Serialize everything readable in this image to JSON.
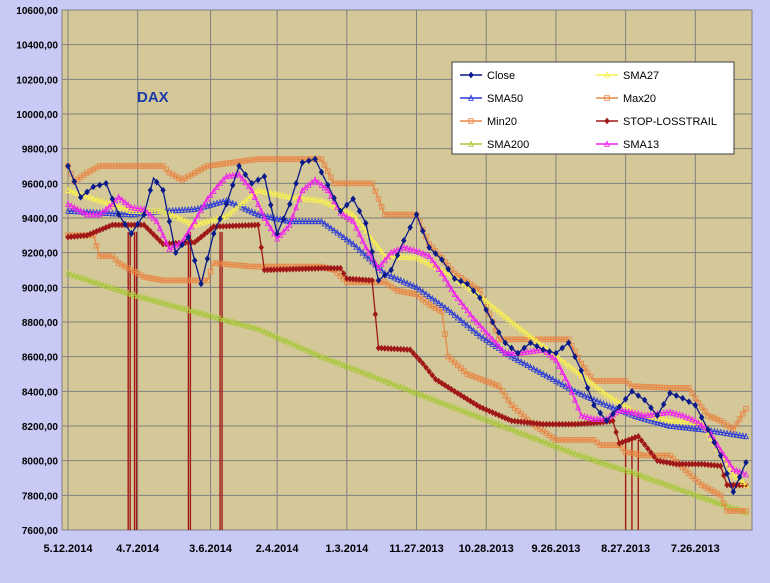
{
  "chart_data": {
    "type": "line",
    "title": "DAX",
    "xlabel": "",
    "ylabel": "",
    "ylim": [
      7600,
      10600
    ],
    "y_ticks": [
      "10600,00",
      "10400,00",
      "10200,00",
      "10000,00",
      "9800,00",
      "9600,00",
      "9400,00",
      "9200,00",
      "9000,00",
      "8800,00",
      "8600,00",
      "8400,00",
      "8200,00",
      "8000,00",
      "7800,00",
      "7600,00"
    ],
    "y_tick_values": [
      10600,
      10400,
      10200,
      10000,
      9800,
      9600,
      9400,
      9200,
      9000,
      8800,
      8600,
      8400,
      8200,
      8000,
      7800,
      7600
    ],
    "x_ticks": [
      "5.12.2014",
      "4.7.2014",
      "3.6.2014",
      "2.4.2014",
      "1.3.2014",
      "11.27.2013",
      "10.28.2013",
      "9.26.2013",
      "8.27.2013",
      "7.26.2013"
    ],
    "x_tick_index": [
      0,
      22,
      45,
      66,
      88,
      110,
      132,
      154,
      176,
      198
    ],
    "x_count": 215,
    "grid": "both",
    "legend_position": "top-right",
    "colors": {
      "background": "#c9c9f5",
      "plot_area": "#d4c898",
      "grid": "#808080",
      "title": "#1a3aa8"
    },
    "series": [
      {
        "name": "Close",
        "color": "#0a1a8a",
        "marker": "diamond",
        "key": [
          [
            0,
            9700
          ],
          [
            4,
            9520
          ],
          [
            8,
            9580
          ],
          [
            12,
            9600
          ],
          [
            16,
            9420
          ],
          [
            20,
            9310
          ],
          [
            24,
            9420
          ],
          [
            27,
            9630
          ],
          [
            30,
            9560
          ],
          [
            34,
            9200
          ],
          [
            38,
            9290
          ],
          [
            42,
            9020
          ],
          [
            46,
            9310
          ],
          [
            50,
            9480
          ],
          [
            54,
            9700
          ],
          [
            58,
            9600
          ],
          [
            62,
            9640
          ],
          [
            66,
            9310
          ],
          [
            70,
            9480
          ],
          [
            74,
            9720
          ],
          [
            78,
            9740
          ],
          [
            82,
            9590
          ],
          [
            86,
            9440
          ],
          [
            90,
            9510
          ],
          [
            94,
            9370
          ],
          [
            98,
            9040
          ],
          [
            102,
            9100
          ],
          [
            106,
            9270
          ],
          [
            110,
            9420
          ],
          [
            114,
            9230
          ],
          [
            118,
            9160
          ],
          [
            122,
            9050
          ],
          [
            126,
            9020
          ],
          [
            130,
            8940
          ],
          [
            134,
            8800
          ],
          [
            138,
            8680
          ],
          [
            142,
            8620
          ],
          [
            146,
            8680
          ],
          [
            150,
            8640
          ],
          [
            154,
            8620
          ],
          [
            158,
            8680
          ],
          [
            162,
            8520
          ],
          [
            166,
            8320
          ],
          [
            170,
            8230
          ],
          [
            174,
            8310
          ],
          [
            178,
            8400
          ],
          [
            182,
            8350
          ],
          [
            186,
            8260
          ],
          [
            190,
            8390
          ],
          [
            194,
            8360
          ],
          [
            198,
            8320
          ],
          [
            202,
            8180
          ],
          [
            206,
            8030
          ],
          [
            210,
            7820
          ],
          [
            214,
            7990
          ]
        ]
      },
      {
        "name": "SMA27",
        "color": "#f8f050",
        "marker": "triangle",
        "key": [
          [
            0,
            9560
          ],
          [
            10,
            9500
          ],
          [
            20,
            9440
          ],
          [
            30,
            9440
          ],
          [
            40,
            9360
          ],
          [
            50,
            9410
          ],
          [
            60,
            9560
          ],
          [
            70,
            9520
          ],
          [
            80,
            9500
          ],
          [
            90,
            9420
          ],
          [
            100,
            9180
          ],
          [
            110,
            9170
          ],
          [
            120,
            9080
          ],
          [
            130,
            8950
          ],
          [
            140,
            8800
          ],
          [
            150,
            8660
          ],
          [
            160,
            8520
          ],
          [
            170,
            8380
          ],
          [
            180,
            8270
          ],
          [
            190,
            8230
          ],
          [
            200,
            8220
          ],
          [
            210,
            7920
          ],
          [
            214,
            7860
          ]
        ]
      },
      {
        "name": "SMA50",
        "color": "#2a3ad8",
        "marker": "triangle",
        "key": [
          [
            0,
            9440
          ],
          [
            20,
            9420
          ],
          [
            30,
            9440
          ],
          [
            40,
            9450
          ],
          [
            50,
            9500
          ],
          [
            60,
            9420
          ],
          [
            70,
            9380
          ],
          [
            80,
            9380
          ],
          [
            90,
            9250
          ],
          [
            100,
            9080
          ],
          [
            110,
            9000
          ],
          [
            120,
            8870
          ],
          [
            130,
            8720
          ],
          [
            140,
            8600
          ],
          [
            150,
            8500
          ],
          [
            160,
            8400
          ],
          [
            170,
            8320
          ],
          [
            180,
            8250
          ],
          [
            190,
            8200
          ],
          [
            200,
            8180
          ],
          [
            214,
            8140
          ]
        ]
      },
      {
        "name": "Max20",
        "color": "#e88848",
        "marker": "square",
        "key": [
          [
            0,
            9700
          ],
          [
            2,
            9610
          ],
          [
            6,
            9660
          ],
          [
            10,
            9700
          ],
          [
            30,
            9700
          ],
          [
            32,
            9660
          ],
          [
            36,
            9620
          ],
          [
            40,
            9660
          ],
          [
            44,
            9700
          ],
          [
            60,
            9740
          ],
          [
            80,
            9740
          ],
          [
            84,
            9600
          ],
          [
            96,
            9600
          ],
          [
            100,
            9420
          ],
          [
            110,
            9420
          ],
          [
            114,
            9250
          ],
          [
            118,
            9170
          ],
          [
            122,
            9080
          ],
          [
            126,
            9030
          ],
          [
            130,
            8980
          ],
          [
            134,
            8800
          ],
          [
            136,
            8700
          ],
          [
            154,
            8700
          ],
          [
            158,
            8700
          ],
          [
            162,
            8560
          ],
          [
            166,
            8460
          ],
          [
            176,
            8460
          ],
          [
            178,
            8430
          ],
          [
            190,
            8420
          ],
          [
            196,
            8420
          ],
          [
            198,
            8360
          ],
          [
            202,
            8260
          ],
          [
            206,
            8230
          ],
          [
            210,
            8180
          ],
          [
            214,
            8300
          ]
        ]
      },
      {
        "name": "Min20",
        "color": "#e88848",
        "marker": "square",
        "key": [
          [
            0,
            9300
          ],
          [
            8,
            9300
          ],
          [
            10,
            9180
          ],
          [
            14,
            9180
          ],
          [
            16,
            9140
          ],
          [
            20,
            9100
          ],
          [
            24,
            9060
          ],
          [
            30,
            9040
          ],
          [
            44,
            9040
          ],
          [
            46,
            9140
          ],
          [
            58,
            9120
          ],
          [
            80,
            9120
          ],
          [
            84,
            9100
          ],
          [
            88,
            9030
          ],
          [
            100,
            9030
          ],
          [
            104,
            8980
          ],
          [
            110,
            8960
          ],
          [
            114,
            8900
          ],
          [
            118,
            8860
          ],
          [
            120,
            8600
          ],
          [
            126,
            8500
          ],
          [
            136,
            8430
          ],
          [
            140,
            8320
          ],
          [
            146,
            8220
          ],
          [
            154,
            8120
          ],
          [
            166,
            8120
          ],
          [
            168,
            8090
          ],
          [
            174,
            8090
          ],
          [
            176,
            8050
          ],
          [
            182,
            8030
          ],
          [
            190,
            8030
          ],
          [
            194,
            7960
          ],
          [
            200,
            7860
          ],
          [
            206,
            7800
          ],
          [
            208,
            7710
          ],
          [
            214,
            7710
          ]
        ]
      },
      {
        "name": "STOP-LOSSTRAIL",
        "color": "#a01818",
        "marker": "diamond",
        "key": [
          [
            0,
            9290
          ],
          [
            6,
            9300
          ],
          [
            14,
            9360
          ],
          [
            24,
            9360
          ],
          [
            30,
            9250
          ],
          [
            40,
            9260
          ],
          [
            46,
            9350
          ],
          [
            60,
            9360
          ],
          [
            62,
            9100
          ],
          [
            80,
            9110
          ],
          [
            86,
            9110
          ],
          [
            88,
            9050
          ],
          [
            96,
            9040
          ],
          [
            98,
            8650
          ],
          [
            108,
            8640
          ],
          [
            112,
            8560
          ],
          [
            116,
            8470
          ],
          [
            122,
            8400
          ],
          [
            130,
            8310
          ],
          [
            140,
            8230
          ],
          [
            150,
            8210
          ],
          [
            160,
            8210
          ],
          [
            168,
            8220
          ],
          [
            172,
            8230
          ],
          [
            174,
            8100
          ],
          [
            180,
            8140
          ],
          [
            186,
            8000
          ],
          [
            192,
            7980
          ],
          [
            200,
            7980
          ],
          [
            206,
            7970
          ],
          [
            208,
            7860
          ],
          [
            214,
            7860
          ]
        ]
      },
      {
        "name": "SMA200",
        "color": "#a8c838",
        "marker": "triangle",
        "key": [
          [
            0,
            9080
          ],
          [
            20,
            8960
          ],
          [
            40,
            8860
          ],
          [
            60,
            8760
          ],
          [
            80,
            8600
          ],
          [
            100,
            8460
          ],
          [
            120,
            8320
          ],
          [
            140,
            8180
          ],
          [
            160,
            8040
          ],
          [
            180,
            7920
          ],
          [
            200,
            7790
          ],
          [
            214,
            7700
          ]
        ]
      },
      {
        "name": "SMA13",
        "color": "#f020f0",
        "marker": "triangle",
        "key": [
          [
            0,
            9480
          ],
          [
            6,
            9420
          ],
          [
            10,
            9420
          ],
          [
            14,
            9480
          ],
          [
            16,
            9520
          ],
          [
            20,
            9460
          ],
          [
            24,
            9450
          ],
          [
            28,
            9380
          ],
          [
            32,
            9220
          ],
          [
            36,
            9260
          ],
          [
            40,
            9380
          ],
          [
            44,
            9510
          ],
          [
            48,
            9600
          ],
          [
            50,
            9640
          ],
          [
            54,
            9650
          ],
          [
            58,
            9560
          ],
          [
            62,
            9400
          ],
          [
            66,
            9280
          ],
          [
            70,
            9360
          ],
          [
            74,
            9560
          ],
          [
            78,
            9620
          ],
          [
            82,
            9560
          ],
          [
            86,
            9430
          ],
          [
            90,
            9380
          ],
          [
            94,
            9230
          ],
          [
            98,
            9110
          ],
          [
            102,
            9200
          ],
          [
            106,
            9230
          ],
          [
            110,
            9210
          ],
          [
            114,
            9180
          ],
          [
            118,
            9080
          ],
          [
            122,
            8960
          ],
          [
            128,
            8820
          ],
          [
            134,
            8700
          ],
          [
            138,
            8620
          ],
          [
            142,
            8620
          ],
          [
            146,
            8630
          ],
          [
            150,
            8640
          ],
          [
            154,
            8580
          ],
          [
            158,
            8440
          ],
          [
            162,
            8260
          ],
          [
            166,
            8240
          ],
          [
            170,
            8240
          ],
          [
            174,
            8290
          ],
          [
            178,
            8280
          ],
          [
            182,
            8260
          ],
          [
            186,
            8270
          ],
          [
            190,
            8280
          ],
          [
            194,
            8260
          ],
          [
            198,
            8230
          ],
          [
            202,
            8180
          ],
          [
            206,
            8060
          ],
          [
            210,
            7950
          ],
          [
            214,
            7920
          ]
        ]
      }
    ]
  },
  "legend": {
    "entries": [
      {
        "label": "Close"
      },
      {
        "label": "SMA27"
      },
      {
        "label": "SMA50"
      },
      {
        "label": "Max20"
      },
      {
        "label": "Min20"
      },
      {
        "label": "STOP-LOSSTRAIL"
      },
      {
        "label": "SMA200"
      },
      {
        "label": "SMA13"
      }
    ]
  }
}
